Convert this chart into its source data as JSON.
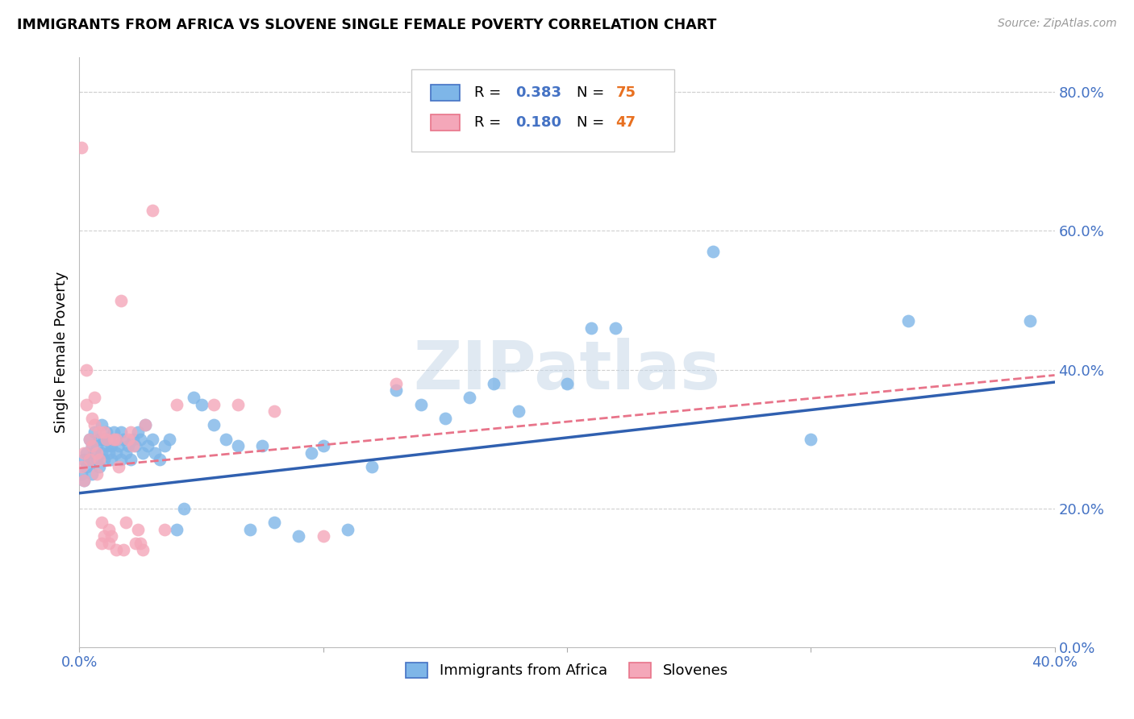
{
  "title": "IMMIGRANTS FROM AFRICA VS SLOVENE SINGLE FEMALE POVERTY CORRELATION CHART",
  "source": "Source: ZipAtlas.com",
  "ylabel": "Single Female Poverty",
  "right_yticks": [
    0.0,
    0.2,
    0.4,
    0.6,
    0.8
  ],
  "right_yticklabels": [
    "0.0%",
    "20.0%",
    "40.0%",
    "60.0%",
    "80.0%"
  ],
  "xlim": [
    0.0,
    0.4
  ],
  "ylim": [
    0.0,
    0.85
  ],
  "blue_color": "#7eb6e8",
  "pink_color": "#f4a7b9",
  "blue_line_color": "#3060b0",
  "pink_line_color": "#e8748a",
  "grid_color": "#d0d0d0",
  "watermark": "ZIPatlas",
  "blue_points": [
    [
      0.001,
      0.25
    ],
    [
      0.002,
      0.27
    ],
    [
      0.002,
      0.24
    ],
    [
      0.003,
      0.26
    ],
    [
      0.003,
      0.28
    ],
    [
      0.004,
      0.27
    ],
    [
      0.004,
      0.3
    ],
    [
      0.005,
      0.25
    ],
    [
      0.005,
      0.29
    ],
    [
      0.006,
      0.28
    ],
    [
      0.006,
      0.31
    ],
    [
      0.007,
      0.27
    ],
    [
      0.007,
      0.29
    ],
    [
      0.008,
      0.26
    ],
    [
      0.008,
      0.3
    ],
    [
      0.009,
      0.28
    ],
    [
      0.009,
      0.32
    ],
    [
      0.01,
      0.27
    ],
    [
      0.01,
      0.3
    ],
    [
      0.011,
      0.29
    ],
    [
      0.011,
      0.31
    ],
    [
      0.012,
      0.28
    ],
    [
      0.012,
      0.3
    ],
    [
      0.013,
      0.27
    ],
    [
      0.013,
      0.29
    ],
    [
      0.014,
      0.31
    ],
    [
      0.015,
      0.28
    ],
    [
      0.015,
      0.3
    ],
    [
      0.016,
      0.29
    ],
    [
      0.017,
      0.31
    ],
    [
      0.017,
      0.27
    ],
    [
      0.018,
      0.3
    ],
    [
      0.019,
      0.28
    ],
    [
      0.02,
      0.29
    ],
    [
      0.021,
      0.27
    ],
    [
      0.022,
      0.3
    ],
    [
      0.023,
      0.29
    ],
    [
      0.024,
      0.31
    ],
    [
      0.025,
      0.3
    ],
    [
      0.026,
      0.28
    ],
    [
      0.027,
      0.32
    ],
    [
      0.028,
      0.29
    ],
    [
      0.03,
      0.3
    ],
    [
      0.031,
      0.28
    ],
    [
      0.033,
      0.27
    ],
    [
      0.035,
      0.29
    ],
    [
      0.037,
      0.3
    ],
    [
      0.04,
      0.17
    ],
    [
      0.043,
      0.2
    ],
    [
      0.047,
      0.36
    ],
    [
      0.05,
      0.35
    ],
    [
      0.055,
      0.32
    ],
    [
      0.06,
      0.3
    ],
    [
      0.065,
      0.29
    ],
    [
      0.07,
      0.17
    ],
    [
      0.075,
      0.29
    ],
    [
      0.08,
      0.18
    ],
    [
      0.09,
      0.16
    ],
    [
      0.095,
      0.28
    ],
    [
      0.1,
      0.29
    ],
    [
      0.11,
      0.17
    ],
    [
      0.12,
      0.26
    ],
    [
      0.13,
      0.37
    ],
    [
      0.14,
      0.35
    ],
    [
      0.15,
      0.33
    ],
    [
      0.16,
      0.36
    ],
    [
      0.17,
      0.38
    ],
    [
      0.18,
      0.34
    ],
    [
      0.2,
      0.38
    ],
    [
      0.21,
      0.46
    ],
    [
      0.22,
      0.46
    ],
    [
      0.26,
      0.57
    ],
    [
      0.3,
      0.3
    ],
    [
      0.34,
      0.47
    ],
    [
      0.39,
      0.47
    ]
  ],
  "pink_points": [
    [
      0.001,
      0.26
    ],
    [
      0.001,
      0.72
    ],
    [
      0.002,
      0.28
    ],
    [
      0.002,
      0.24
    ],
    [
      0.003,
      0.4
    ],
    [
      0.003,
      0.35
    ],
    [
      0.004,
      0.3
    ],
    [
      0.004,
      0.27
    ],
    [
      0.005,
      0.33
    ],
    [
      0.005,
      0.29
    ],
    [
      0.006,
      0.36
    ],
    [
      0.006,
      0.32
    ],
    [
      0.007,
      0.28
    ],
    [
      0.007,
      0.25
    ],
    [
      0.008,
      0.31
    ],
    [
      0.008,
      0.27
    ],
    [
      0.009,
      0.15
    ],
    [
      0.009,
      0.18
    ],
    [
      0.01,
      0.16
    ],
    [
      0.01,
      0.31
    ],
    [
      0.011,
      0.3
    ],
    [
      0.012,
      0.15
    ],
    [
      0.012,
      0.17
    ],
    [
      0.013,
      0.16
    ],
    [
      0.014,
      0.3
    ],
    [
      0.015,
      0.14
    ],
    [
      0.015,
      0.3
    ],
    [
      0.016,
      0.26
    ],
    [
      0.017,
      0.5
    ],
    [
      0.018,
      0.14
    ],
    [
      0.019,
      0.18
    ],
    [
      0.02,
      0.3
    ],
    [
      0.021,
      0.31
    ],
    [
      0.022,
      0.29
    ],
    [
      0.023,
      0.15
    ],
    [
      0.024,
      0.17
    ],
    [
      0.025,
      0.15
    ],
    [
      0.026,
      0.14
    ],
    [
      0.027,
      0.32
    ],
    [
      0.03,
      0.63
    ],
    [
      0.035,
      0.17
    ],
    [
      0.04,
      0.35
    ],
    [
      0.055,
      0.35
    ],
    [
      0.065,
      0.35
    ],
    [
      0.08,
      0.34
    ],
    [
      0.1,
      0.16
    ],
    [
      0.13,
      0.38
    ]
  ]
}
